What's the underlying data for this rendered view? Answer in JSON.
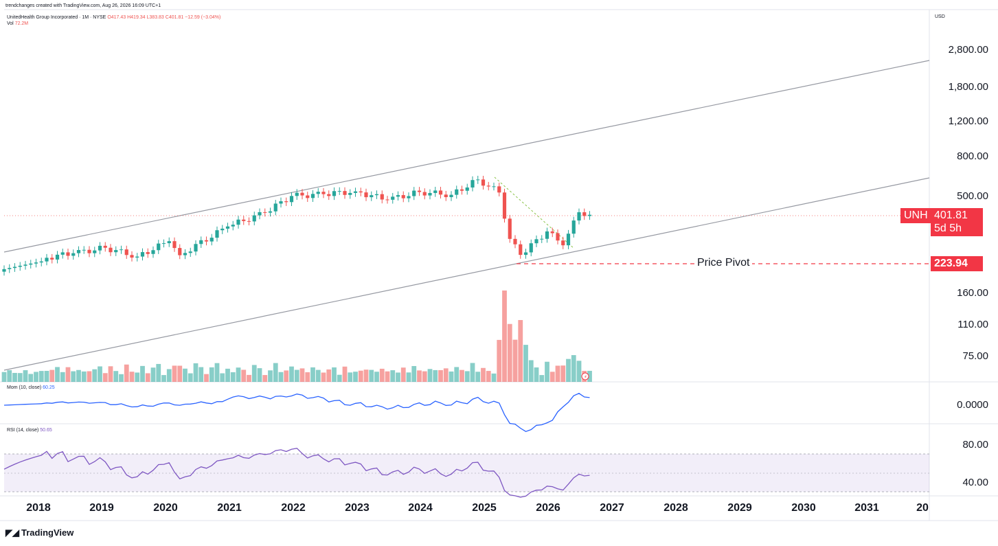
{
  "header": {
    "credit": "trendchanges created with TradingView.com, Aug 26, 2026 16:09 UTC+1",
    "symbol_line": "UnitedHealth Group Incorporated · 1M · NYSE",
    "ohlc": "O417.43 H419.34 L383.83 C401.81 −12.59 (−3.04%)",
    "vol_label": "Vol",
    "vol_value": "72.2M"
  },
  "price_axis": {
    "currency": "USD",
    "ticks": [
      "2,800.00",
      "1,800.00",
      "1,200.00",
      "800.00",
      "500.00",
      "160.00",
      "110.00",
      "75.00"
    ],
    "symbol_tag": "UNH",
    "last_price": "401.81",
    "countdown": "5d 5h",
    "pivot_price": "223.94"
  },
  "pivot_label": "Price Pivot",
  "mom_panel": {
    "label": "Mom (10, close)",
    "value": "60.25",
    "ticks": [
      "0.0000"
    ]
  },
  "rsi_panel": {
    "label": "RSI (14, close)",
    "value": "50.65",
    "ticks": [
      "80.00",
      "40.00"
    ]
  },
  "x_axis": [
    "2018",
    "2019",
    "2020",
    "2021",
    "2022",
    "2023",
    "2024",
    "2025",
    "2026",
    "2027",
    "2028",
    "2029",
    "2030",
    "2031",
    "20"
  ],
  "footer": {
    "brand": "TradingView"
  },
  "colors": {
    "up": "#26a69a",
    "down": "#ef5350",
    "mom": "#2962ff",
    "rsi": "#7e57c2",
    "pivot": "#f23645"
  },
  "chart_data": {
    "type": "candlestick",
    "interval": "1M",
    "scale": "log",
    "last_close": 401.81,
    "pivot_level": 223.94,
    "closes_approx": [
      {
        "date": "2018-01",
        "close": 240
      },
      {
        "date": "2018-07",
        "close": 255
      },
      {
        "date": "2019-01",
        "close": 272
      },
      {
        "date": "2019-07",
        "close": 245
      },
      {
        "date": "2020-01",
        "close": 294
      },
      {
        "date": "2020-03",
        "close": 249
      },
      {
        "date": "2020-12",
        "close": 350
      },
      {
        "date": "2021-07",
        "close": 412
      },
      {
        "date": "2021-12",
        "close": 502
      },
      {
        "date": "2022-06",
        "close": 513
      },
      {
        "date": "2022-12",
        "close": 530
      },
      {
        "date": "2023-06",
        "close": 480
      },
      {
        "date": "2023-12",
        "close": 526
      },
      {
        "date": "2024-06",
        "close": 509
      },
      {
        "date": "2024-11",
        "close": 610
      },
      {
        "date": "2025-03",
        "close": 523
      },
      {
        "date": "2025-05",
        "close": 302
      },
      {
        "date": "2025-07",
        "close": 250
      },
      {
        "date": "2025-12",
        "close": 330
      },
      {
        "date": "2026-03",
        "close": 280
      },
      {
        "date": "2026-06",
        "close": 414
      },
      {
        "date": "2026-08",
        "close": 401.81
      }
    ]
  }
}
